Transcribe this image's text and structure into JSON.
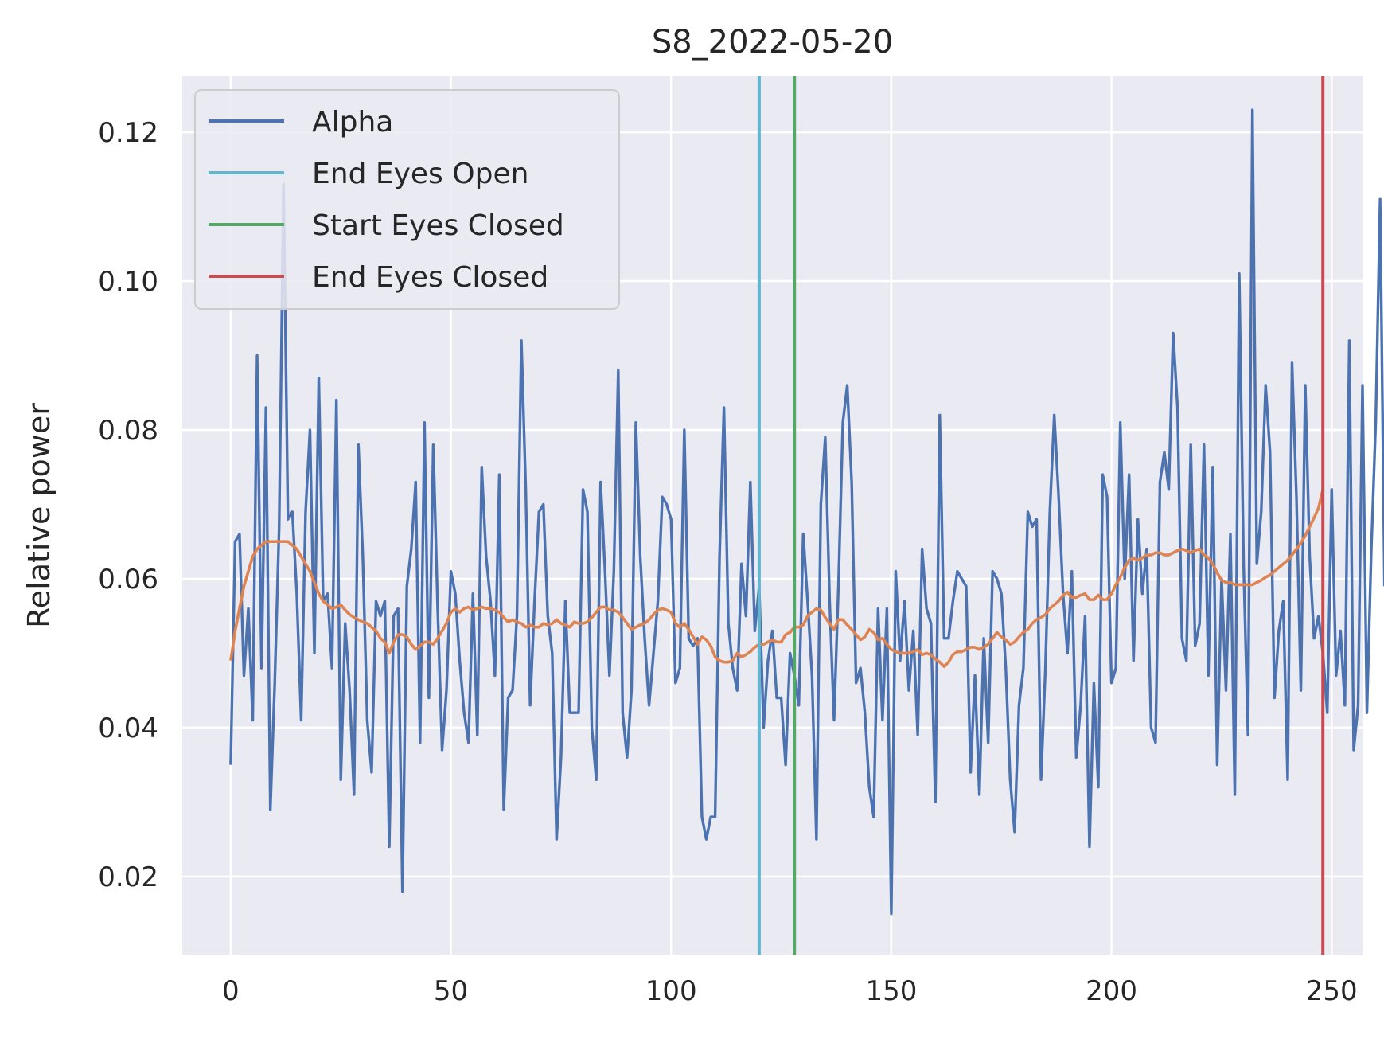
{
  "chart_data": {
    "type": "line",
    "title": "S8_2022-05-20",
    "xlabel": "",
    "ylabel": "Relative power",
    "xlim": [
      -11,
      257
    ],
    "ylim": [
      0.0095,
      0.1275
    ],
    "xticks": [
      0,
      50,
      100,
      150,
      200,
      250
    ],
    "xtick_labels": [
      "0",
      "50",
      "100",
      "150",
      "200",
      "250"
    ],
    "yticks": [
      0.02,
      0.04,
      0.06,
      0.08,
      0.1,
      0.12
    ],
    "ytick_labels": [
      "0.02",
      "0.04",
      "0.06",
      "0.08",
      "0.10",
      "0.12"
    ],
    "grid": true,
    "legend_position": "top-left",
    "colors": {
      "background": "#eaeaf2",
      "grid": "#ffffff",
      "alpha": "#4c72b0",
      "smoothed": "#dd8452",
      "end_eyes_open": "#64b5cd",
      "start_eyes_closed": "#55a868",
      "end_eyes_closed": "#c44e52"
    },
    "series": [
      {
        "name": "Alpha",
        "x_start": 0,
        "values": [
          0.035,
          0.065,
          0.066,
          0.047,
          0.056,
          0.041,
          0.09,
          0.048,
          0.083,
          0.029,
          0.046,
          0.067,
          0.113,
          0.068,
          0.069,
          0.058,
          0.041,
          0.069,
          0.08,
          0.05,
          0.087,
          0.057,
          0.058,
          0.048,
          0.084,
          0.033,
          0.054,
          0.045,
          0.031,
          0.078,
          0.063,
          0.041,
          0.034,
          0.057,
          0.055,
          0.057,
          0.024,
          0.055,
          0.056,
          0.018,
          0.059,
          0.064,
          0.073,
          0.038,
          0.081,
          0.044,
          0.078,
          0.056,
          0.037,
          0.045,
          0.061,
          0.058,
          0.049,
          0.042,
          0.038,
          0.058,
          0.039,
          0.075,
          0.063,
          0.057,
          0.047,
          0.074,
          0.029,
          0.044,
          0.045,
          0.055,
          0.092,
          0.072,
          0.043,
          0.057,
          0.069,
          0.07,
          0.055,
          0.05,
          0.025,
          0.036,
          0.057,
          0.042,
          0.042,
          0.042,
          0.072,
          0.069,
          0.04,
          0.033,
          0.073,
          0.061,
          0.047,
          0.061,
          0.088,
          0.042,
          0.036,
          0.045,
          0.081,
          0.063,
          0.052,
          0.043,
          0.05,
          0.057,
          0.071,
          0.07,
          0.068,
          0.046,
          0.048,
          0.08,
          0.052,
          0.051,
          0.052,
          0.028,
          0.025,
          0.028,
          0.028,
          0.063,
          0.083,
          0.054,
          0.048,
          0.045,
          0.062,
          0.055,
          0.073,
          0.053,
          0.059,
          0.04,
          0.049,
          0.053,
          0.044,
          0.044,
          0.035,
          0.05,
          0.047,
          0.043,
          0.066,
          0.057,
          0.047,
          0.025,
          0.07,
          0.079,
          0.057,
          0.041,
          0.059,
          0.081,
          0.086,
          0.073,
          0.046,
          0.048,
          0.042,
          0.032,
          0.028,
          0.056,
          0.041,
          0.056,
          0.015,
          0.061,
          0.049,
          0.057,
          0.045,
          0.053,
          0.039,
          0.064,
          0.056,
          0.054,
          0.03,
          0.082,
          0.052,
          0.052,
          0.057,
          0.061,
          0.06,
          0.059,
          0.034,
          0.047,
          0.031,
          0.052,
          0.038,
          0.061,
          0.06,
          0.058,
          0.048,
          0.033,
          0.026,
          0.043,
          0.048,
          0.069,
          0.067,
          0.068,
          0.033,
          0.048,
          0.069,
          0.082,
          0.071,
          0.058,
          0.05,
          0.061,
          0.036,
          0.043,
          0.055,
          0.024,
          0.046,
          0.032,
          0.074,
          0.071,
          0.046,
          0.048,
          0.081,
          0.06,
          0.074,
          0.049,
          0.068,
          0.058,
          0.064,
          0.04,
          0.038,
          0.073,
          0.077,
          0.072,
          0.093,
          0.083,
          0.052,
          0.049,
          0.078,
          0.051,
          0.054,
          0.078,
          0.047,
          0.075,
          0.035,
          0.06,
          0.045,
          0.066,
          0.031,
          0.101,
          0.062,
          0.039,
          0.123,
          0.062,
          0.069,
          0.086,
          0.077,
          0.044,
          0.053,
          0.057,
          0.033,
          0.089,
          0.071,
          0.045,
          0.086,
          0.063,
          0.052,
          0.055,
          0.05,
          0.042,
          0.072,
          0.047,
          0.053,
          0.043,
          0.092,
          0.037,
          0.043,
          0.086,
          0.042,
          0.064,
          0.081,
          0.111,
          0.059
        ]
      },
      {
        "name": "",
        "x_start": 0,
        "values": [
          0.049,
          0.053,
          0.056,
          0.059,
          0.061,
          0.063,
          0.064,
          0.0645,
          0.065,
          0.065,
          0.065,
          0.065,
          0.065,
          0.065,
          0.0645,
          0.064,
          0.063,
          0.062,
          0.061,
          0.0595,
          0.058,
          0.057,
          0.0565,
          0.056,
          0.0562,
          0.0565,
          0.0558,
          0.0552,
          0.0548,
          0.0545,
          0.0542,
          0.054,
          0.0535,
          0.053,
          0.052,
          0.0515,
          0.05,
          0.0515,
          0.0525,
          0.0525,
          0.0522,
          0.0512,
          0.0505,
          0.051,
          0.0515,
          0.0515,
          0.0512,
          0.052,
          0.053,
          0.054,
          0.0555,
          0.056,
          0.0555,
          0.056,
          0.0562,
          0.0558,
          0.056,
          0.0562,
          0.056,
          0.056,
          0.0558,
          0.0555,
          0.0548,
          0.0542,
          0.0545,
          0.0542,
          0.054,
          0.0535,
          0.0538,
          0.0535,
          0.0535,
          0.054,
          0.0538,
          0.054,
          0.0545,
          0.054,
          0.0538,
          0.0535,
          0.0542,
          0.054,
          0.054,
          0.0542,
          0.0548,
          0.0555,
          0.0562,
          0.0562,
          0.0558,
          0.0558,
          0.0555,
          0.0548,
          0.054,
          0.0532,
          0.0535,
          0.0538,
          0.054,
          0.0545,
          0.0552,
          0.0558,
          0.056,
          0.0558,
          0.0555,
          0.054,
          0.0535,
          0.054,
          0.0532,
          0.0522,
          0.0512,
          0.0522,
          0.0518,
          0.051,
          0.0495,
          0.049,
          0.0488,
          0.0488,
          0.049,
          0.05,
          0.0495,
          0.0498,
          0.0502,
          0.0508,
          0.0512,
          0.0512,
          0.0515,
          0.0518,
          0.0515,
          0.0515,
          0.0525,
          0.0528,
          0.0535,
          0.0535,
          0.0538,
          0.055,
          0.0555,
          0.056,
          0.0558,
          0.0548,
          0.054,
          0.0532,
          0.0545,
          0.0545,
          0.0538,
          0.0532,
          0.0525,
          0.0518,
          0.0522,
          0.0532,
          0.0528,
          0.0518,
          0.052,
          0.0512,
          0.0505,
          0.0502,
          0.05,
          0.05,
          0.05,
          0.0502,
          0.0505,
          0.0498,
          0.05,
          0.0498,
          0.0492,
          0.0488,
          0.0482,
          0.0488,
          0.0498,
          0.0502,
          0.0502,
          0.0505,
          0.0508,
          0.0508,
          0.0505,
          0.0508,
          0.0512,
          0.052,
          0.0528,
          0.0522,
          0.0518,
          0.0512,
          0.0515,
          0.0522,
          0.0528,
          0.0532,
          0.054,
          0.0545,
          0.0548,
          0.0552,
          0.056,
          0.0565,
          0.057,
          0.0578,
          0.0582,
          0.0575,
          0.0575,
          0.0578,
          0.058,
          0.0572,
          0.0572,
          0.0578,
          0.0572,
          0.0572,
          0.058,
          0.0592,
          0.0602,
          0.0615,
          0.0625,
          0.0628,
          0.0625,
          0.0628,
          0.0632,
          0.0632,
          0.0635,
          0.0635,
          0.0632,
          0.0632,
          0.0635,
          0.0638,
          0.064,
          0.0638,
          0.0635,
          0.0638,
          0.064,
          0.0632,
          0.0628,
          0.062,
          0.0608,
          0.0598,
          0.0595,
          0.0595,
          0.0592,
          0.0592,
          0.0592,
          0.0592,
          0.0592,
          0.0595,
          0.0598,
          0.0602,
          0.0605,
          0.061,
          0.0615,
          0.062,
          0.0625,
          0.0632,
          0.064,
          0.0648,
          0.0658,
          0.067,
          0.0682,
          0.0695,
          0.072
        ]
      }
    ],
    "vlines": [
      {
        "name": "End Eyes Open",
        "x": 120
      },
      {
        "name": "Start Eyes Closed",
        "x": 128
      },
      {
        "name": "End Eyes Closed",
        "x": 248
      }
    ]
  }
}
